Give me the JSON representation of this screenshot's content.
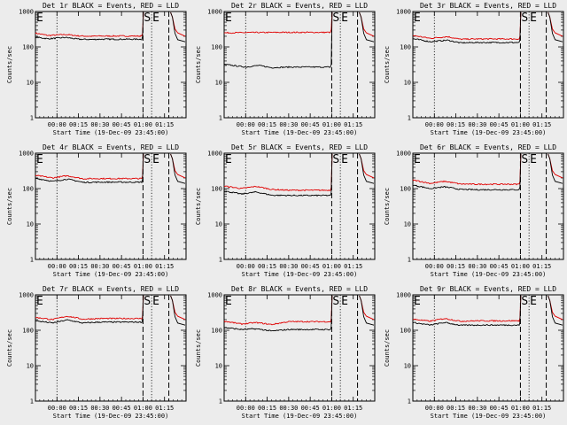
{
  "chart_data": [
    {
      "type": "line",
      "title": "Det 1r BLACK = Events, RED = LLD",
      "xlabel": "Start Time (19-Dec-09 23:45:00)",
      "ylabel": "Counts/sec",
      "yscale": "log",
      "ylim": [
        1,
        1000
      ],
      "xlim": [
        -0.25,
        1.5
      ],
      "xticks": [
        "00:00",
        "00:15",
        "00:30",
        "00:45",
        "01:00",
        "01:15"
      ],
      "yticks": [
        "1",
        "10",
        "100",
        "1000"
      ],
      "markers": [
        "E",
        "S",
        "E"
      ],
      "grid": false,
      "series": [
        {
          "color": "red",
          "anchors": [
            [
              -0.25,
              245
            ],
            [
              -0.1,
              210
            ],
            [
              0.1,
              225
            ],
            [
              0.25,
              205
            ],
            [
              0.4,
              200
            ],
            [
              0.5,
              203
            ]
          ]
        },
        {
          "color": "black",
          "anchors": [
            [
              -0.25,
              190
            ],
            [
              -0.1,
              170
            ],
            [
              0.1,
              185
            ],
            [
              0.25,
              165
            ],
            [
              0.4,
              162
            ],
            [
              0.5,
              165
            ]
          ]
        }
      ]
    },
    {
      "type": "line",
      "title": "Det 2r BLACK = Events, RED = LLD",
      "xlabel": "Start Time (19-Dec-09 23:45:00)",
      "ylabel": "Counts/sec",
      "yscale": "log",
      "ylim": [
        1,
        1000
      ],
      "xlim": [
        -0.25,
        1.5
      ],
      "xticks": [
        "00:00",
        "00:15",
        "00:30",
        "00:45",
        "01:00",
        "01:15"
      ],
      "yticks": [
        "1",
        "10",
        "100",
        "1000"
      ],
      "markers": [
        "E",
        "S",
        "E"
      ],
      "grid": false,
      "series": [
        {
          "color": "red",
          "anchors": [
            [
              -0.25,
              250
            ],
            [
              0.1,
              255
            ],
            [
              0.5,
              258
            ]
          ]
        },
        {
          "color": "black",
          "anchors": [
            [
              -0.25,
              32
            ],
            [
              0,
              27
            ],
            [
              0.15,
              30
            ],
            [
              0.3,
              26
            ],
            [
              0.5,
              27
            ]
          ]
        }
      ]
    },
    {
      "type": "line",
      "title": "Det 3r BLACK = Events, RED = LLD",
      "xlabel": "Start Time (19-Dec-09 23:45:00)",
      "ylabel": "Counts/sec",
      "yscale": "log",
      "ylim": [
        1,
        1000
      ],
      "xlim": [
        -0.25,
        1.5
      ],
      "xticks": [
        "00:00",
        "00:15",
        "00:30",
        "00:45",
        "01:00",
        "01:15"
      ],
      "yticks": [
        "1",
        "10",
        "100",
        "1000"
      ],
      "markers": [
        "E",
        "S",
        "E"
      ],
      "grid": false,
      "series": [
        {
          "color": "red",
          "anchors": [
            [
              -0.25,
              210
            ],
            [
              -0.05,
              175
            ],
            [
              0.15,
              195
            ],
            [
              0.3,
              165
            ],
            [
              0.5,
              168
            ]
          ]
        },
        {
          "color": "black",
          "anchors": [
            [
              -0.25,
              170
            ],
            [
              -0.05,
              140
            ],
            [
              0.15,
              155
            ],
            [
              0.3,
              130
            ],
            [
              0.5,
              133
            ]
          ]
        }
      ]
    },
    {
      "type": "line",
      "title": "Det 4r BLACK = Events, RED = LLD",
      "xlabel": "Start Time (19-Dec-09 23:45:00)",
      "ylabel": "Counts/sec",
      "yscale": "log",
      "ylim": [
        1,
        1000
      ],
      "xlim": [
        -0.25,
        1.5
      ],
      "xticks": [
        "00:00",
        "00:15",
        "00:30",
        "00:45",
        "01:00",
        "01:15"
      ],
      "yticks": [
        "1",
        "10",
        "100",
        "1000"
      ],
      "markers": [
        "E",
        "S",
        "E"
      ],
      "grid": false,
      "series": [
        {
          "color": "red",
          "anchors": [
            [
              -0.25,
              235
            ],
            [
              -0.05,
              200
            ],
            [
              0.12,
              230
            ],
            [
              0.3,
              190
            ],
            [
              0.5,
              192
            ]
          ]
        },
        {
          "color": "black",
          "anchors": [
            [
              -0.25,
              195
            ],
            [
              -0.05,
              160
            ],
            [
              0.12,
              185
            ],
            [
              0.3,
              150
            ],
            [
              0.5,
              152
            ]
          ]
        }
      ]
    },
    {
      "type": "line",
      "title": "Det 5r BLACK = Events, RED = LLD",
      "xlabel": "Start Time (19-Dec-09 23:45:00)",
      "ylabel": "Counts/sec",
      "yscale": "log",
      "ylim": [
        1,
        1000
      ],
      "xlim": [
        -0.25,
        1.5
      ],
      "xticks": [
        "00:00",
        "00:15",
        "00:30",
        "00:45",
        "01:00",
        "01:15"
      ],
      "yticks": [
        "1",
        "10",
        "100",
        "1000"
      ],
      "markers": [
        "E",
        "S",
        "E"
      ],
      "grid": false,
      "series": [
        {
          "color": "red",
          "anchors": [
            [
              -0.25,
              118
            ],
            [
              -0.05,
              100
            ],
            [
              0.12,
              115
            ],
            [
              0.3,
              95
            ],
            [
              0.5,
              90
            ]
          ]
        },
        {
          "color": "black",
          "anchors": [
            [
              -0.25,
              85
            ],
            [
              -0.05,
              70
            ],
            [
              0.12,
              80
            ],
            [
              0.3,
              65
            ],
            [
              0.5,
              64
            ]
          ]
        }
      ]
    },
    {
      "type": "line",
      "title": "Det 6r BLACK = Events, RED = LLD",
      "xlabel": "Start Time (19-Dec-09 23:45:00)",
      "ylabel": "Counts/sec",
      "yscale": "log",
      "ylim": [
        1,
        1000
      ],
      "xlim": [
        -0.25,
        1.5
      ],
      "xticks": [
        "00:00",
        "00:15",
        "00:30",
        "00:45",
        "01:00",
        "01:15"
      ],
      "yticks": [
        "1",
        "10",
        "100",
        "1000"
      ],
      "markers": [
        "E",
        "S",
        "E"
      ],
      "grid": false,
      "series": [
        {
          "color": "red",
          "anchors": [
            [
              -0.25,
              175
            ],
            [
              -0.05,
              140
            ],
            [
              0.12,
              160
            ],
            [
              0.3,
              135
            ],
            [
              0.5,
              133
            ]
          ]
        },
        {
          "color": "black",
          "anchors": [
            [
              -0.25,
              125
            ],
            [
              -0.05,
              100
            ],
            [
              0.12,
              112
            ],
            [
              0.3,
              95
            ],
            [
              0.5,
              93
            ]
          ]
        }
      ]
    },
    {
      "type": "line",
      "title": "Det 7r BLACK = Events, RED = LLD",
      "xlabel": "Start Time (19-Dec-09 23:45:00)",
      "ylabel": "Counts/sec",
      "yscale": "log",
      "ylim": [
        1,
        1000
      ],
      "xlim": [
        -0.25,
        1.5
      ],
      "xticks": [
        "00:00",
        "00:15",
        "00:30",
        "00:45",
        "01:00",
        "01:15"
      ],
      "yticks": [
        "1",
        "10",
        "100",
        "1000"
      ],
      "markers": [
        "E",
        "S",
        "E"
      ],
      "grid": false,
      "series": [
        {
          "color": "red",
          "anchors": [
            [
              -0.25,
              230
            ],
            [
              -0.05,
              200
            ],
            [
              0.12,
              250
            ],
            [
              0.3,
              205
            ],
            [
              0.5,
              215
            ]
          ]
        },
        {
          "color": "black",
          "anchors": [
            [
              -0.25,
              185
            ],
            [
              -0.05,
              160
            ],
            [
              0.12,
              195
            ],
            [
              0.3,
              160
            ],
            [
              0.5,
              170
            ]
          ]
        }
      ]
    },
    {
      "type": "line",
      "title": "Det 8r BLACK = Events, RED = LLD",
      "xlabel": "Start Time (19-Dec-09 23:45:00)",
      "ylabel": "Counts/sec",
      "yscale": "log",
      "ylim": [
        1,
        1000
      ],
      "xlim": [
        -0.25,
        1.5
      ],
      "xticks": [
        "00:00",
        "00:15",
        "00:30",
        "00:45",
        "01:00",
        "01:15"
      ],
      "yticks": [
        "1",
        "10",
        "100",
        "1000"
      ],
      "markers": [
        "E",
        "S",
        "E"
      ],
      "grid": false,
      "series": [
        {
          "color": "red",
          "anchors": [
            [
              -0.25,
              180
            ],
            [
              -0.05,
              150
            ],
            [
              0.12,
              165
            ],
            [
              0.3,
              145
            ],
            [
              0.5,
              175
            ]
          ]
        },
        {
          "color": "black",
          "anchors": [
            [
              -0.25,
              120
            ],
            [
              -0.05,
              105
            ],
            [
              0.12,
              110
            ],
            [
              0.3,
              95
            ],
            [
              0.5,
              105
            ]
          ]
        }
      ]
    },
    {
      "type": "line",
      "title": "Det 9r BLACK = Events, RED = LLD",
      "xlabel": "Start Time (19-Dec-09 23:45:00)",
      "ylabel": "Counts/sec",
      "yscale": "log",
      "ylim": [
        1,
        1000
      ],
      "xlim": [
        -0.25,
        1.5
      ],
      "xticks": [
        "00:00",
        "00:15",
        "00:30",
        "00:45",
        "01:00",
        "01:15"
      ],
      "yticks": [
        "1",
        "10",
        "100",
        "1000"
      ],
      "markers": [
        "E",
        "S",
        "E"
      ],
      "grid": false,
      "series": [
        {
          "color": "red",
          "anchors": [
            [
              -0.25,
              205
            ],
            [
              -0.05,
              180
            ],
            [
              0.12,
              215
            ],
            [
              0.3,
              180
            ],
            [
              0.5,
              185
            ]
          ]
        },
        {
          "color": "black",
          "anchors": [
            [
              -0.25,
              165
            ],
            [
              -0.05,
              140
            ],
            [
              0.12,
              165
            ],
            [
              0.3,
              138
            ],
            [
              0.5,
              140
            ]
          ]
        }
      ]
    }
  ]
}
